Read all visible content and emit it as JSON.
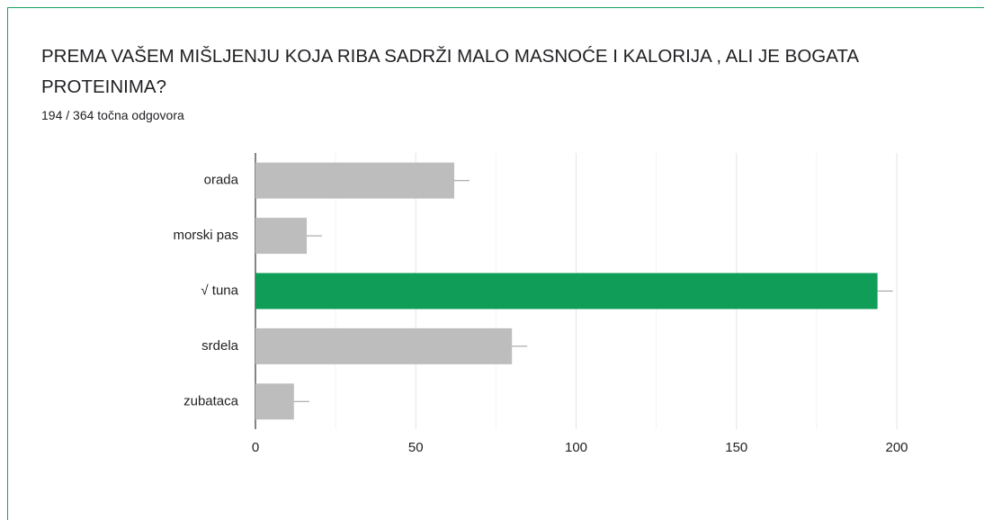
{
  "chart_data": {
    "type": "bar",
    "orientation": "horizontal",
    "title": "PREMA VAŠEM MIŠLJENJU KOJA RIBA SADRŽI MALO MASNOĆE I KALORIJA , ALI JE BOGATA PROTEINIMA?",
    "subtitle": "194 / 364 točna odgovora",
    "categories": [
      "orada",
      "morski pas",
      "√ tuna",
      "srdela",
      "zubataca"
    ],
    "values": [
      62,
      16,
      194,
      80,
      12
    ],
    "colors": [
      "#bdbdbd",
      "#bdbdbd",
      "#0f9d58",
      "#bdbdbd",
      "#bdbdbd"
    ],
    "xlim": [
      0,
      200
    ],
    "xticks": [
      0,
      50,
      100,
      150,
      200
    ],
    "grid": true,
    "minor_grid": true
  }
}
